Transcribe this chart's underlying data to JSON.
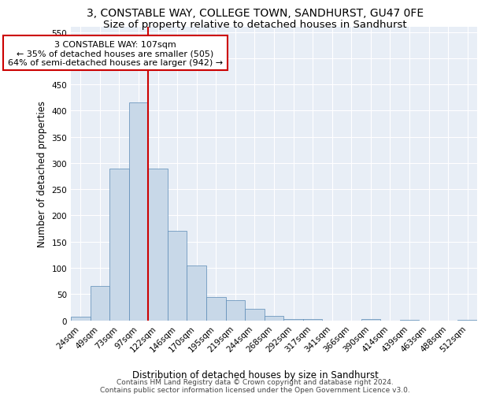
{
  "title": "3, CONSTABLE WAY, COLLEGE TOWN, SANDHURST, GU47 0FE",
  "subtitle": "Size of property relative to detached houses in Sandhurst",
  "xlabel": "Distribution of detached houses by size in Sandhurst",
  "ylabel": "Number of detached properties",
  "footer_line1": "Contains HM Land Registry data © Crown copyright and database right 2024.",
  "footer_line2": "Contains public sector information licensed under the Open Government Licence v3.0.",
  "annotation_line1": "3 CONSTABLE WAY: 107sqm",
  "annotation_line2": "← 35% of detached houses are smaller (505)",
  "annotation_line3": "64% of semi-detached houses are larger (942) →",
  "bar_color": "#c8d8e8",
  "bar_edge_color": "#5a8ab5",
  "vline_color": "#cc0000",
  "annotation_box_color": "#cc0000",
  "bg_color": "#e8eef6",
  "categories": [
    "24sqm",
    "49sqm",
    "73sqm",
    "97sqm",
    "122sqm",
    "146sqm",
    "170sqm",
    "195sqm",
    "219sqm",
    "244sqm",
    "268sqm",
    "292sqm",
    "317sqm",
    "341sqm",
    "366sqm",
    "390sqm",
    "414sqm",
    "439sqm",
    "463sqm",
    "488sqm",
    "512sqm"
  ],
  "values": [
    7,
    65,
    290,
    415,
    290,
    170,
    105,
    45,
    38,
    22,
    8,
    3,
    2,
    0,
    0,
    3,
    0,
    1,
    0,
    0,
    1
  ],
  "ylim": [
    0,
    560
  ],
  "yticks": [
    0,
    50,
    100,
    150,
    200,
    250,
    300,
    350,
    400,
    450,
    500,
    550
  ],
  "vline_x_index": 3.5,
  "title_fontsize": 10,
  "subtitle_fontsize": 9.5,
  "axis_label_fontsize": 8.5,
  "tick_fontsize": 7.5,
  "annotation_fontsize": 8,
  "footer_fontsize": 6.5
}
